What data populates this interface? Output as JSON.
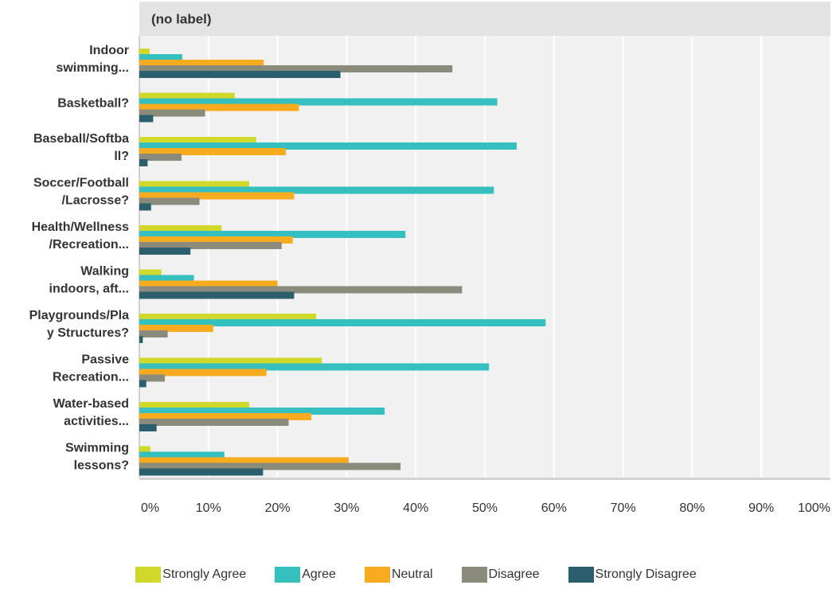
{
  "chart_data": {
    "type": "bar",
    "orientation": "horizontal",
    "title": "(no label)",
    "categories": [
      [
        "Indoor",
        "swimming..."
      ],
      [
        "Basketball?"
      ],
      [
        "Baseball/Softba",
        "ll?"
      ],
      [
        "Soccer/Football",
        "/Lacrosse?"
      ],
      [
        "Health/Wellness",
        "/Recreation..."
      ],
      [
        "Walking",
        "indoors, aft..."
      ],
      [
        "Playgrounds/Pla",
        "y Structures?"
      ],
      [
        "Passive",
        "Recreation..."
      ],
      [
        "Water-based",
        "activities..."
      ],
      [
        "Swimming",
        "lessons?"
      ]
    ],
    "series": [
      {
        "name": "Strongly Agree",
        "color": "#d0d82a",
        "values": [
          1.5,
          13.8,
          16.9,
          15.9,
          11.9,
          3.2,
          25.6,
          26.4,
          15.9,
          1.6
        ]
      },
      {
        "name": "Agree",
        "color": "#35bfbf",
        "values": [
          6.2,
          51.8,
          54.6,
          51.3,
          38.5,
          7.9,
          58.8,
          50.6,
          35.5,
          12.3
        ]
      },
      {
        "name": "Neutral",
        "color": "#f7ab1f",
        "values": [
          18.0,
          23.1,
          21.2,
          22.4,
          22.2,
          20.0,
          10.7,
          18.4,
          24.9,
          30.3
        ]
      },
      {
        "name": "Disagree",
        "color": "#8b8b7c",
        "values": [
          45.3,
          9.5,
          6.1,
          8.7,
          20.6,
          46.7,
          4.1,
          3.7,
          21.6,
          37.8
        ]
      },
      {
        "name": "Strongly Disagree",
        "color": "#2c5f6e",
        "values": [
          29.1,
          2.0,
          1.2,
          1.7,
          7.4,
          22.4,
          0.5,
          1.0,
          2.5,
          17.9
        ]
      }
    ],
    "xlim": [
      0,
      100
    ],
    "xticks": [
      "0%",
      "10%",
      "20%",
      "30%",
      "40%",
      "50%",
      "60%",
      "70%",
      "80%",
      "90%",
      "100%"
    ],
    "grid": true,
    "legend_position": "bottom"
  }
}
